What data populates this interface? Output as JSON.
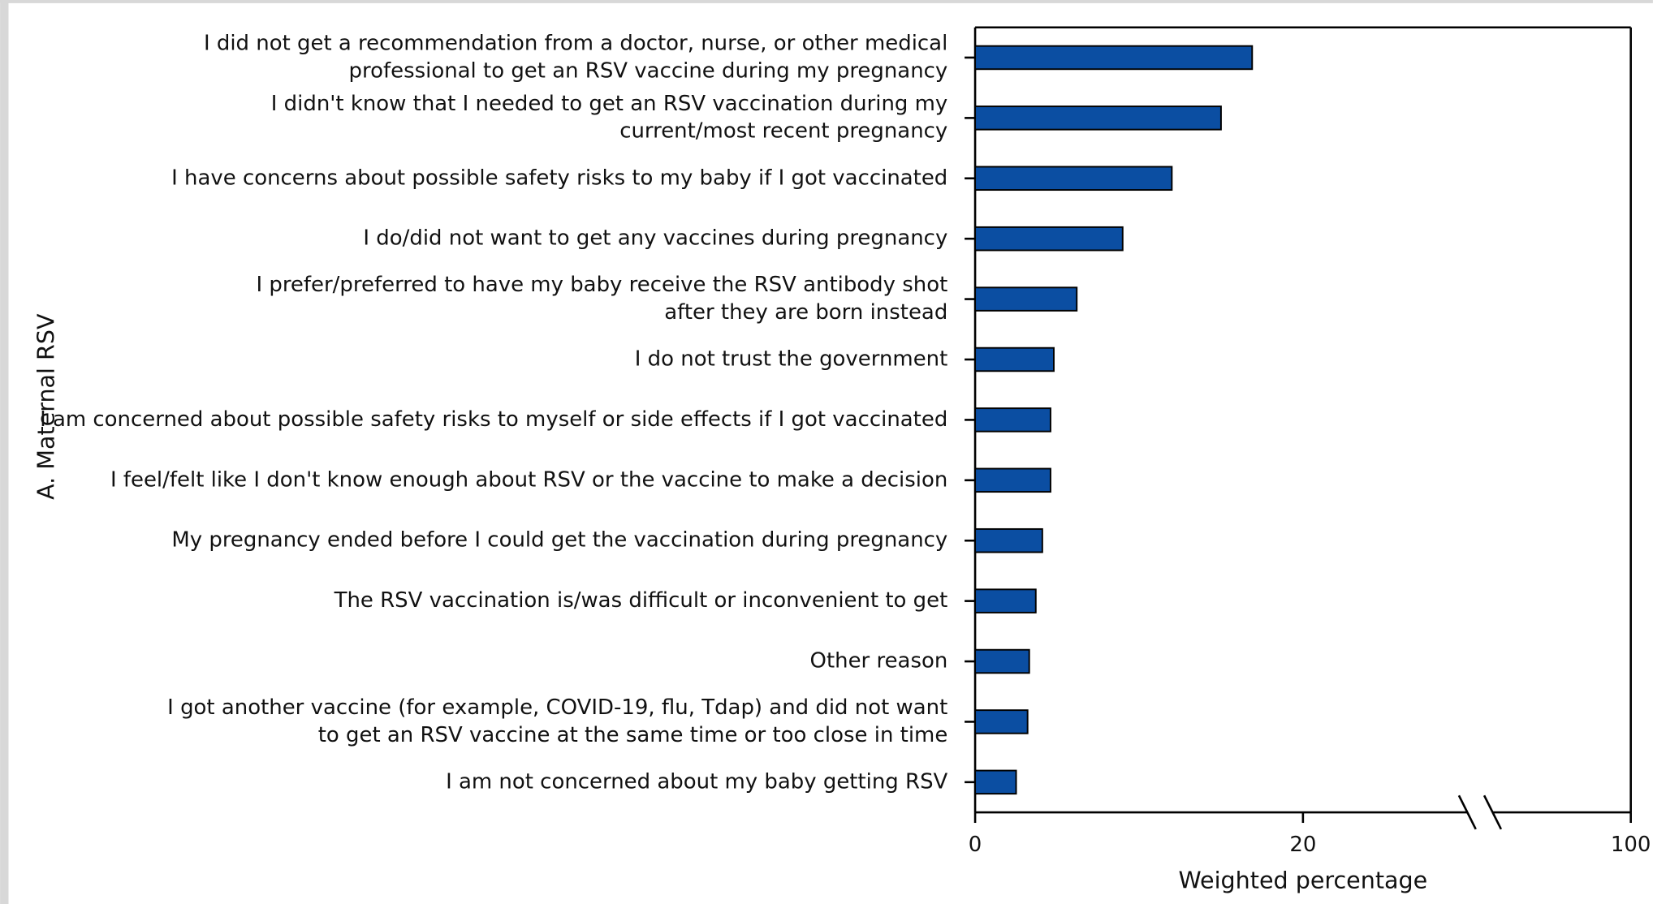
{
  "chart_data": {
    "type": "hbar",
    "y_axis_label": "A. Maternal RSV",
    "x_axis_label": "Weighted percentage",
    "categories": [
      [
        "I did not get a recommendation from a doctor, nurse, or other medical",
        "professional to get an RSV vaccine during my pregnancy"
      ],
      [
        "I didn't know that I needed to get an RSV vaccination during my",
        "current/most recent pregnancy"
      ],
      [
        "I have concerns about possible safety risks to my baby if I got vaccinated"
      ],
      [
        "I do/did not want to get any vaccines during pregnancy"
      ],
      [
        "I prefer/preferred to have my baby receive the RSV antibody shot",
        "after they are born instead"
      ],
      [
        "I do not trust the government"
      ],
      [
        "I am concerned about possible safety risks to myself or side effects if I got vaccinated"
      ],
      [
        "I feel/felt like I don't know enough about RSV or the vaccine to make a decision"
      ],
      [
        "My pregnancy ended before I could get the vaccination during pregnancy"
      ],
      [
        "The RSV vaccination is/was difficult or inconvenient to get"
      ],
      [
        "Other reason"
      ],
      [
        "I got another vaccine (for example, COVID-19, flu, Tdap) and did not want",
        "to get an RSV vaccine at the same time or too close in time"
      ],
      [
        "I am not concerned about my baby getting RSV"
      ]
    ],
    "values": [
      16.9,
      15.0,
      12.0,
      9.0,
      6.2,
      4.8,
      4.6,
      4.6,
      4.1,
      3.7,
      3.3,
      3.2,
      2.5
    ],
    "color": "#0b4ea2",
    "xlim": [
      0,
      100
    ],
    "xticks": [
      0,
      20,
      100
    ],
    "axis_break": true
  }
}
